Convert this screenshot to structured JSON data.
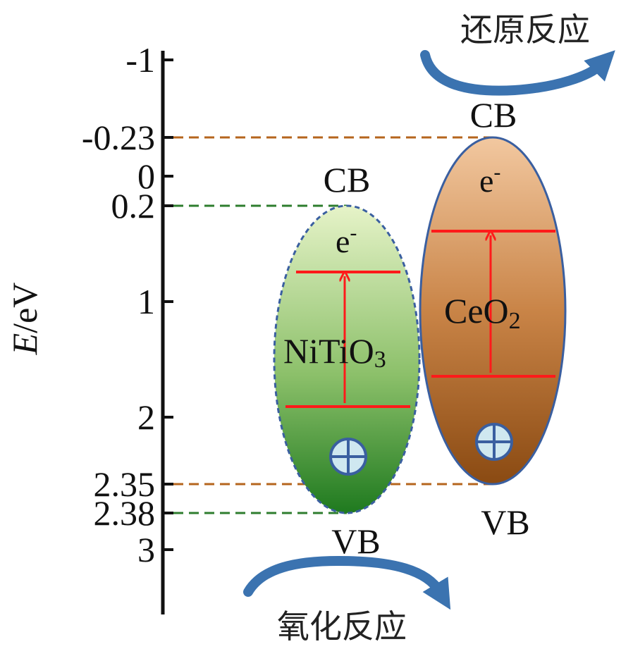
{
  "axis": {
    "label_italic": "E",
    "label_rest": "/eV",
    "ticks": [
      {
        "value": -1,
        "label": "-1"
      },
      {
        "value": -0.23,
        "label": "-0.23"
      },
      {
        "value": 0,
        "label": "0"
      },
      {
        "value": 0.2,
        "label": "0.2"
      },
      {
        "value": 1,
        "label": "1"
      },
      {
        "value": 2,
        "label": "2"
      },
      {
        "value": 2.35,
        "label": "2.35"
      },
      {
        "value": 2.38,
        "label": "2.38"
      },
      {
        "value": 3,
        "label": "3"
      }
    ]
  },
  "nitio3": {
    "name_main": "NiTiO",
    "name_sub": "3",
    "cb_label": "CB",
    "vb_label": "VB",
    "electron_label": "e",
    "electron_sup": "-",
    "cb_potential": 0.2,
    "vb_potential": 2.38,
    "color_top": "#e6f3c8",
    "color_bottom": "#1f7a1f",
    "guide_color": "#2e7d2e"
  },
  "ceo2": {
    "name_main": "CeO",
    "name_sub": "2",
    "cb_label": "CB",
    "vb_label": "VB",
    "electron_label": "e",
    "electron_sup": "-",
    "cb_potential": -0.23,
    "vb_potential": 2.35,
    "color_top": "#f2c8a0",
    "color_bottom": "#8a4a12",
    "guide_color": "#b5651d"
  },
  "reactions": {
    "reduction": "还原反应",
    "oxidation": "氧化反应"
  },
  "colors": {
    "excitation": "#ff1a1a",
    "ellipse_outline": "#3a5fa0",
    "hole_fill": "#cfe8f0"
  }
}
